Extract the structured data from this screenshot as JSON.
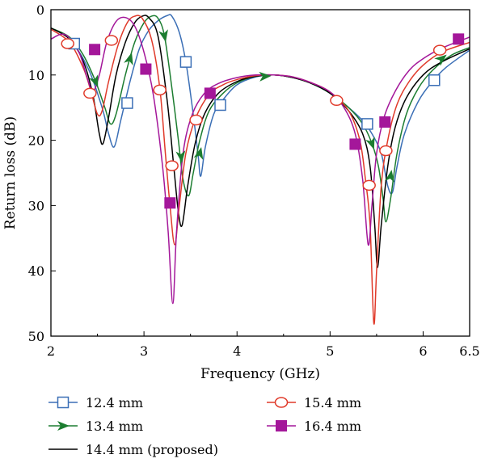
{
  "chart_data": {
    "type": "line",
    "xlabel": "Frequency (GHz)",
    "ylabel": "Return loss (dB)",
    "xlim": [
      2,
      6.5
    ],
    "ylim": [
      0,
      50
    ],
    "y_inverted": true,
    "xticks": [
      {
        "value": 2,
        "label": "2"
      },
      {
        "value": 3,
        "label": "3"
      },
      {
        "value": 4,
        "label": "4"
      },
      {
        "value": 5,
        "label": "5"
      },
      {
        "value": 6,
        "label": "6"
      },
      {
        "value": 6.5,
        "label": "6.5"
      }
    ],
    "yticks": [
      {
        "value": 0,
        "label": "0"
      },
      {
        "value": 10,
        "label": "10"
      },
      {
        "value": 20,
        "label": "20"
      },
      {
        "value": 30,
        "label": "30"
      },
      {
        "value": 40,
        "label": "40"
      },
      {
        "value": 50,
        "label": "50"
      }
    ],
    "grid": false,
    "legend_position": "bottom",
    "series": [
      {
        "name": "12.4 mm",
        "color": "#3b6fb6",
        "marker": "square-open",
        "points": [
          [
            2.0,
            2.8
          ],
          [
            2.2,
            4.5
          ],
          [
            2.4,
            9.0
          ],
          [
            2.55,
            15.0
          ],
          [
            2.62,
            19.0
          ],
          [
            2.68,
            21.0
          ],
          [
            2.75,
            17.0
          ],
          [
            2.85,
            11.0
          ],
          [
            2.95,
            6.0
          ],
          [
            3.05,
            3.2
          ],
          [
            3.15,
            1.7
          ],
          [
            3.25,
            0.9
          ],
          [
            3.3,
            1.0
          ],
          [
            3.38,
            3.5
          ],
          [
            3.45,
            8.0
          ],
          [
            3.52,
            15.0
          ],
          [
            3.58,
            22.0
          ],
          [
            3.61,
            25.5
          ],
          [
            3.66,
            21.0
          ],
          [
            3.75,
            16.0
          ],
          [
            3.85,
            13.8
          ],
          [
            4.0,
            11.5
          ],
          [
            4.2,
            10.3
          ],
          [
            4.4,
            10.0
          ],
          [
            4.6,
            10.4
          ],
          [
            4.8,
            11.3
          ],
          [
            5.0,
            12.8
          ],
          [
            5.2,
            15.0
          ],
          [
            5.35,
            17.0
          ],
          [
            5.45,
            19.0
          ],
          [
            5.55,
            22.0
          ],
          [
            5.62,
            27.0
          ],
          [
            5.67,
            28.0
          ],
          [
            5.72,
            24.0
          ],
          [
            5.8,
            19.0
          ],
          [
            5.95,
            14.0
          ],
          [
            6.1,
            11.0
          ],
          [
            6.25,
            8.8
          ],
          [
            6.5,
            6.2
          ]
        ],
        "marker_points": [
          [
            2.25,
            5.2
          ],
          [
            2.82,
            14.3
          ],
          [
            3.45,
            8.0
          ],
          [
            3.82,
            14.6
          ],
          [
            5.4,
            17.5
          ],
          [
            6.12,
            10.8
          ]
        ]
      },
      {
        "name": "13.4 mm",
        "color": "#1c7d30",
        "marker": "arrow",
        "points": [
          [
            2.0,
            2.8
          ],
          [
            2.2,
            4.2
          ],
          [
            2.35,
            7.0
          ],
          [
            2.48,
            11.0
          ],
          [
            2.58,
            15.0
          ],
          [
            2.64,
            17.5
          ],
          [
            2.7,
            16.0
          ],
          [
            2.8,
            10.0
          ],
          [
            2.9,
            5.0
          ],
          [
            3.0,
            2.0
          ],
          [
            3.08,
            1.0
          ],
          [
            3.15,
            1.3
          ],
          [
            3.22,
            4.0
          ],
          [
            3.3,
            12.0
          ],
          [
            3.37,
            20.0
          ],
          [
            3.42,
            26.0
          ],
          [
            3.48,
            28.5
          ],
          [
            3.53,
            25.0
          ],
          [
            3.6,
            20.0
          ],
          [
            3.7,
            15.5
          ],
          [
            3.85,
            12.8
          ],
          [
            4.0,
            11.2
          ],
          [
            4.2,
            10.2
          ],
          [
            4.4,
            10.0
          ],
          [
            4.6,
            10.4
          ],
          [
            4.8,
            11.3
          ],
          [
            5.0,
            12.8
          ],
          [
            5.2,
            15.0
          ],
          [
            5.35,
            17.5
          ],
          [
            5.45,
            20.5
          ],
          [
            5.52,
            24.0
          ],
          [
            5.57,
            29.0
          ],
          [
            5.6,
            32.5
          ],
          [
            5.65,
            29.0
          ],
          [
            5.72,
            22.0
          ],
          [
            5.82,
            16.0
          ],
          [
            5.95,
            12.0
          ],
          [
            6.1,
            9.3
          ],
          [
            6.3,
            7.0
          ],
          [
            6.5,
            5.8
          ]
        ],
        "marker_points": [
          [
            2.48,
            11.0
          ],
          [
            2.85,
            7.5
          ],
          [
            3.22,
            4.0
          ],
          [
            3.4,
            22.5
          ],
          [
            3.6,
            22.0
          ],
          [
            4.3,
            10.2
          ],
          [
            5.45,
            20.5
          ],
          [
            5.65,
            25.5
          ],
          [
            6.2,
            7.5
          ]
        ]
      },
      {
        "name": "14.4 mm (proposed)",
        "color": "#000000",
        "marker": "none",
        "points": [
          [
            2.0,
            2.8
          ],
          [
            2.2,
            4.5
          ],
          [
            2.35,
            8.0
          ],
          [
            2.45,
            13.0
          ],
          [
            2.52,
            19.0
          ],
          [
            2.56,
            20.5
          ],
          [
            2.62,
            16.5
          ],
          [
            2.7,
            10.0
          ],
          [
            2.8,
            5.0
          ],
          [
            2.9,
            2.0
          ],
          [
            2.98,
            1.0
          ],
          [
            3.05,
            1.2
          ],
          [
            3.15,
            4.0
          ],
          [
            3.25,
            14.0
          ],
          [
            3.32,
            24.0
          ],
          [
            3.37,
            31.0
          ],
          [
            3.41,
            33.0
          ],
          [
            3.47,
            27.0
          ],
          [
            3.55,
            20.5
          ],
          [
            3.65,
            16.0
          ],
          [
            3.8,
            12.8
          ],
          [
            4.0,
            11.0
          ],
          [
            4.2,
            10.2
          ],
          [
            4.4,
            10.0
          ],
          [
            4.6,
            10.4
          ],
          [
            4.8,
            11.3
          ],
          [
            5.0,
            12.8
          ],
          [
            5.2,
            15.5
          ],
          [
            5.35,
            19.0
          ],
          [
            5.43,
            24.0
          ],
          [
            5.48,
            33.0
          ],
          [
            5.51,
            39.5
          ],
          [
            5.55,
            33.0
          ],
          [
            5.62,
            24.0
          ],
          [
            5.7,
            18.0
          ],
          [
            5.82,
            13.5
          ],
          [
            6.0,
            10.0
          ],
          [
            6.2,
            8.0
          ],
          [
            6.5,
            6.0
          ]
        ],
        "marker_points": []
      },
      {
        "name": "15.4 mm",
        "color": "#e03a2a",
        "marker": "circle-open",
        "points": [
          [
            2.0,
            3.0
          ],
          [
            2.2,
            5.0
          ],
          [
            2.35,
            9.0
          ],
          [
            2.43,
            12.5
          ],
          [
            2.5,
            16.0
          ],
          [
            2.55,
            15.5
          ],
          [
            2.62,
            11.0
          ],
          [
            2.72,
            5.5
          ],
          [
            2.82,
            2.0
          ],
          [
            2.9,
            1.0
          ],
          [
            2.98,
            1.3
          ],
          [
            3.08,
            4.5
          ],
          [
            3.17,
            12.0
          ],
          [
            3.23,
            22.0
          ],
          [
            3.28,
            30.0
          ],
          [
            3.33,
            36.0
          ],
          [
            3.38,
            30.0
          ],
          [
            3.45,
            22.0
          ],
          [
            3.55,
            16.8
          ],
          [
            3.7,
            13.0
          ],
          [
            3.85,
            11.5
          ],
          [
            4.0,
            10.7
          ],
          [
            4.2,
            10.1
          ],
          [
            4.4,
            10.0
          ],
          [
            4.6,
            10.3
          ],
          [
            4.8,
            11.2
          ],
          [
            5.0,
            12.6
          ],
          [
            5.2,
            15.5
          ],
          [
            5.32,
            20.0
          ],
          [
            5.38,
            26.0
          ],
          [
            5.43,
            33.0
          ],
          [
            5.47,
            48.0
          ],
          [
            5.5,
            40.0
          ],
          [
            5.55,
            27.0
          ],
          [
            5.62,
            20.0
          ],
          [
            5.72,
            14.5
          ],
          [
            5.85,
            11.0
          ],
          [
            6.0,
            8.5
          ],
          [
            6.2,
            6.5
          ],
          [
            6.5,
            5.0
          ]
        ],
        "marker_points": [
          [
            2.18,
            5.2
          ],
          [
            2.42,
            12.8
          ],
          [
            2.65,
            4.7
          ],
          [
            3.17,
            12.3
          ],
          [
            3.3,
            23.9
          ],
          [
            3.56,
            16.9
          ],
          [
            5.07,
            13.9
          ],
          [
            5.42,
            26.9
          ],
          [
            5.6,
            21.6
          ],
          [
            6.18,
            6.2
          ]
        ]
      },
      {
        "name": "16.4 mm",
        "color": "#a4179a",
        "marker": "square-filled",
        "points": [
          [
            2.0,
            4.5
          ],
          [
            2.15,
            3.8
          ],
          [
            2.3,
            6.5
          ],
          [
            2.38,
            10.0
          ],
          [
            2.45,
            12.5
          ],
          [
            2.52,
            10.0
          ],
          [
            2.6,
            5.0
          ],
          [
            2.7,
            1.8
          ],
          [
            2.8,
            1.2
          ],
          [
            2.9,
            2.5
          ],
          [
            3.0,
            6.5
          ],
          [
            3.1,
            13.0
          ],
          [
            3.2,
            24.0
          ],
          [
            3.26,
            34.0
          ],
          [
            3.31,
            45.0
          ],
          [
            3.35,
            34.0
          ],
          [
            3.42,
            22.0
          ],
          [
            3.52,
            16.0
          ],
          [
            3.65,
            12.8
          ],
          [
            3.8,
            11.3
          ],
          [
            4.0,
            10.4
          ],
          [
            4.2,
            10.0
          ],
          [
            4.4,
            10.0
          ],
          [
            4.6,
            10.3
          ],
          [
            4.8,
            11.2
          ],
          [
            5.0,
            12.6
          ],
          [
            5.15,
            15.0
          ],
          [
            5.27,
            19.0
          ],
          [
            5.35,
            26.0
          ],
          [
            5.41,
            36.0
          ],
          [
            5.45,
            30.0
          ],
          [
            5.5,
            22.0
          ],
          [
            5.58,
            16.5
          ],
          [
            5.7,
            12.5
          ],
          [
            5.85,
            9.3
          ],
          [
            6.0,
            7.5
          ],
          [
            6.2,
            5.9
          ],
          [
            6.5,
            4.2
          ]
        ],
        "marker_points": [
          [
            2.47,
            6.1
          ],
          [
            3.02,
            9.1
          ],
          [
            3.28,
            29.6
          ],
          [
            3.71,
            12.8
          ],
          [
            5.27,
            20.6
          ],
          [
            5.59,
            17.2
          ],
          [
            6.38,
            4.5
          ]
        ]
      }
    ],
    "legend": [
      {
        "label": "12.4 mm",
        "series": 0
      },
      {
        "label": "15.4 mm",
        "series": 3
      },
      {
        "label": "13.4 mm",
        "series": 1
      },
      {
        "label": "16.4 mm",
        "series": 4
      },
      {
        "label": "14.4 mm (proposed)",
        "series": 2
      }
    ]
  }
}
